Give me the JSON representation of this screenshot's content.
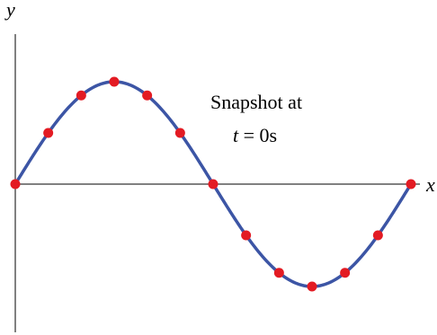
{
  "axes": {
    "y_label": "y",
    "x_label": "x"
  },
  "annotation": {
    "line1": "Snapshot at",
    "line2_var": "t",
    "line2_rest": " = 0s"
  },
  "colors": {
    "curve": "#3c55a5",
    "points": "#e31b23",
    "axis": "#000000"
  },
  "chart_data": {
    "type": "line",
    "title": "",
    "curve": "sine",
    "cycles": 1,
    "amplitude": 1,
    "sample_points": {
      "count": 13,
      "phase_fraction": [
        0,
        0.0833,
        0.1667,
        0.25,
        0.3333,
        0.4167,
        0.5,
        0.5833,
        0.6667,
        0.75,
        0.8333,
        0.9167,
        1
      ],
      "y": [
        0,
        0.5,
        0.866,
        1,
        0.866,
        0.5,
        0,
        -0.5,
        -0.866,
        -1,
        -0.866,
        -0.5,
        0
      ]
    }
  }
}
